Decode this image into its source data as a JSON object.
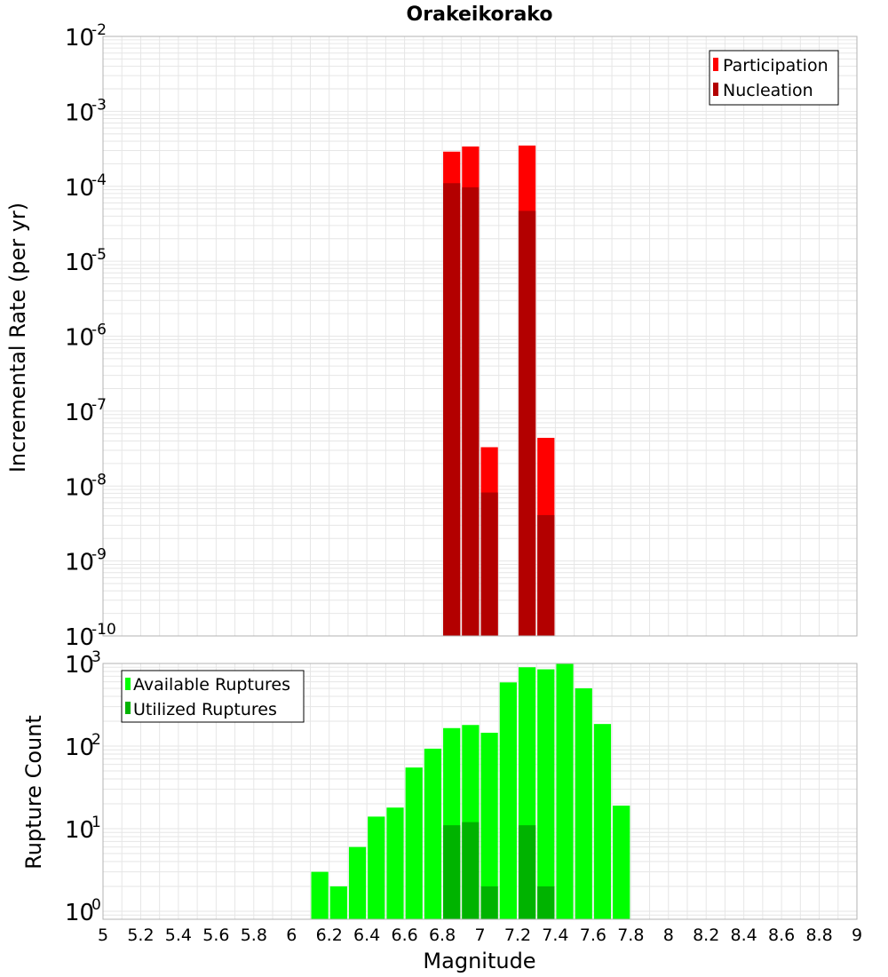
{
  "chart_data": [
    {
      "type": "bar",
      "title": "Orakeikorako",
      "xlabel": "",
      "ylabel": "Incremental Rate (per yr)",
      "yscale": "log",
      "ylim": [
        1e-10,
        0.01
      ],
      "xlim": [
        5,
        9
      ],
      "bin_width": 0.1,
      "grid": true,
      "legend_position": "top-right",
      "series": [
        {
          "name": "Participation",
          "color": "#ff0000",
          "x": [
            6.85,
            6.95,
            7.05,
            7.25,
            7.35
          ],
          "values": [
            0.00029,
            0.00034,
            3.3e-08,
            0.00035,
            4.4e-08
          ]
        },
        {
          "name": "Nucleation",
          "color": "#b30000",
          "x": [
            6.85,
            6.95,
            7.05,
            7.25,
            7.35
          ],
          "values": [
            0.00011,
            9.7e-05,
            8.2e-09,
            4.7e-05,
            4.1e-09
          ]
        }
      ]
    },
    {
      "type": "bar",
      "xlabel": "Magnitude",
      "ylabel": "Rupture Count",
      "yscale": "log",
      "ylim": [
        0.8,
        1000
      ],
      "xlim": [
        5,
        9
      ],
      "bin_width": 0.1,
      "grid": true,
      "legend_position": "top-left",
      "x_ticks": [
        "5",
        "5.2",
        "5.4",
        "5.6",
        "5.8",
        "6",
        "6.2",
        "6.4",
        "6.6",
        "6.8",
        "7",
        "7.2",
        "7.4",
        "7.6",
        "7.8",
        "8",
        "8.2",
        "8.4",
        "8.6",
        "8.8",
        "9"
      ],
      "series": [
        {
          "name": "Available Ruptures",
          "color": "#00ff00",
          "x": [
            6.15,
            6.25,
            6.35,
            6.45,
            6.55,
            6.65,
            6.75,
            6.85,
            6.95,
            7.05,
            7.15,
            7.25,
            7.35,
            7.45,
            7.55,
            7.65,
            7.75
          ],
          "values": [
            3,
            2,
            6,
            14,
            18,
            55,
            93,
            165,
            180,
            145,
            590,
            900,
            850,
            1000,
            500,
            185,
            19
          ]
        },
        {
          "name": "Utilized Ruptures",
          "color": "#00b300",
          "x": [
            6.85,
            6.95,
            7.05,
            7.25,
            7.35
          ],
          "values": [
            11,
            12,
            2,
            11,
            2
          ]
        }
      ]
    }
  ]
}
